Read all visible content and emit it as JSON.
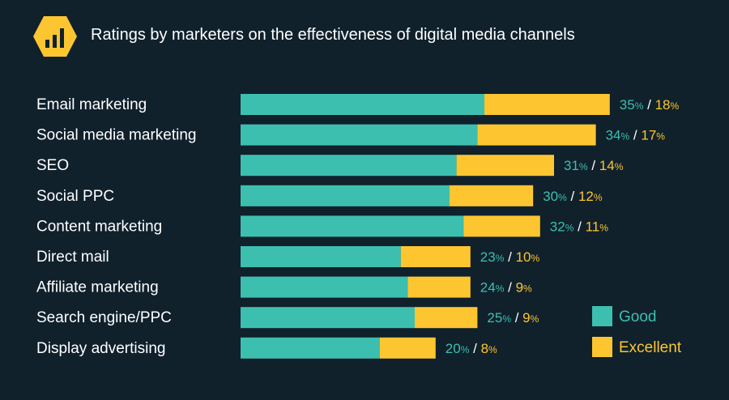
{
  "title": "Ratings by marketers on the effectiveness of digital media channels",
  "icon": "bar-chart-icon",
  "colors": {
    "background": "#10212c",
    "good": "#3dbfb0",
    "excellent": "#fdc631",
    "separator": "#ffffff"
  },
  "legend": {
    "good": "Good",
    "excellent": "Excellent",
    "placement": "bottom-right"
  },
  "chart_data": {
    "type": "bar",
    "orientation": "horizontal",
    "stacked": true,
    "title": "Ratings by marketers on the effectiveness of digital media channels",
    "categories": [
      "Email marketing",
      "Social media marketing",
      "SEO",
      "Social PPC",
      "Content marketing",
      "Direct mail",
      "Affiliate marketing",
      "Search engine/PPC",
      "Display advertising"
    ],
    "series": [
      {
        "name": "Good",
        "values": [
          35,
          34,
          31,
          30,
          32,
          23,
          24,
          25,
          20
        ]
      },
      {
        "name": "Excellent",
        "values": [
          18,
          17,
          14,
          12,
          11,
          10,
          9,
          9,
          8
        ]
      }
    ],
    "unit": "%",
    "grid": false,
    "legend_placement": "bottom-right"
  }
}
